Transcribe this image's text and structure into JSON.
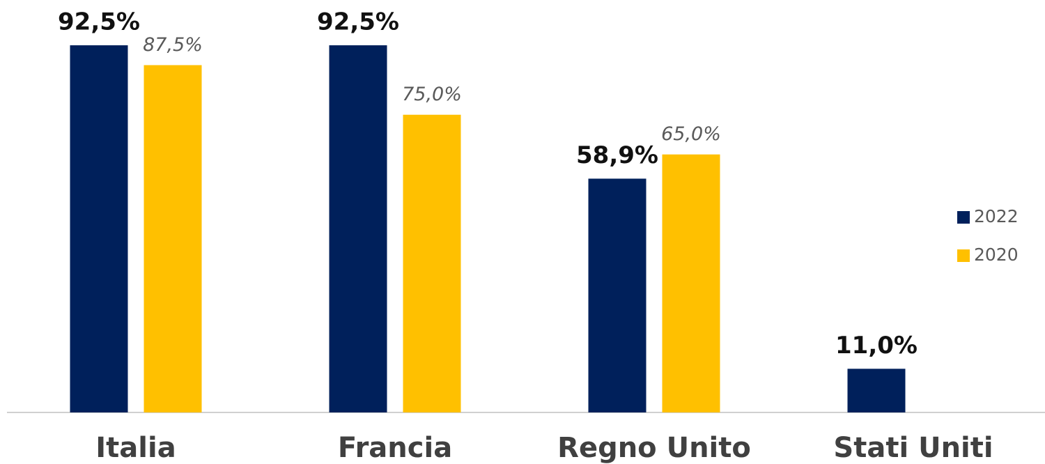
{
  "chart_data": {
    "type": "bar",
    "categories": [
      "Italia",
      "Francia",
      "Regno Unito",
      "Stati Uniti"
    ],
    "series": [
      {
        "name": "2022",
        "color": "#00205b",
        "values": [
          92.5,
          92.5,
          58.9,
          11.0
        ],
        "value_labels": [
          "92,5%",
          "92,5%",
          "58,9%",
          "11,0%"
        ]
      },
      {
        "name": "2020",
        "color": "#ffc000",
        "values": [
          87.5,
          75.0,
          65.0,
          null
        ],
        "value_labels": [
          "87,5%",
          "75,0%",
          "65,0%",
          null
        ]
      }
    ],
    "legend": "right"
  }
}
